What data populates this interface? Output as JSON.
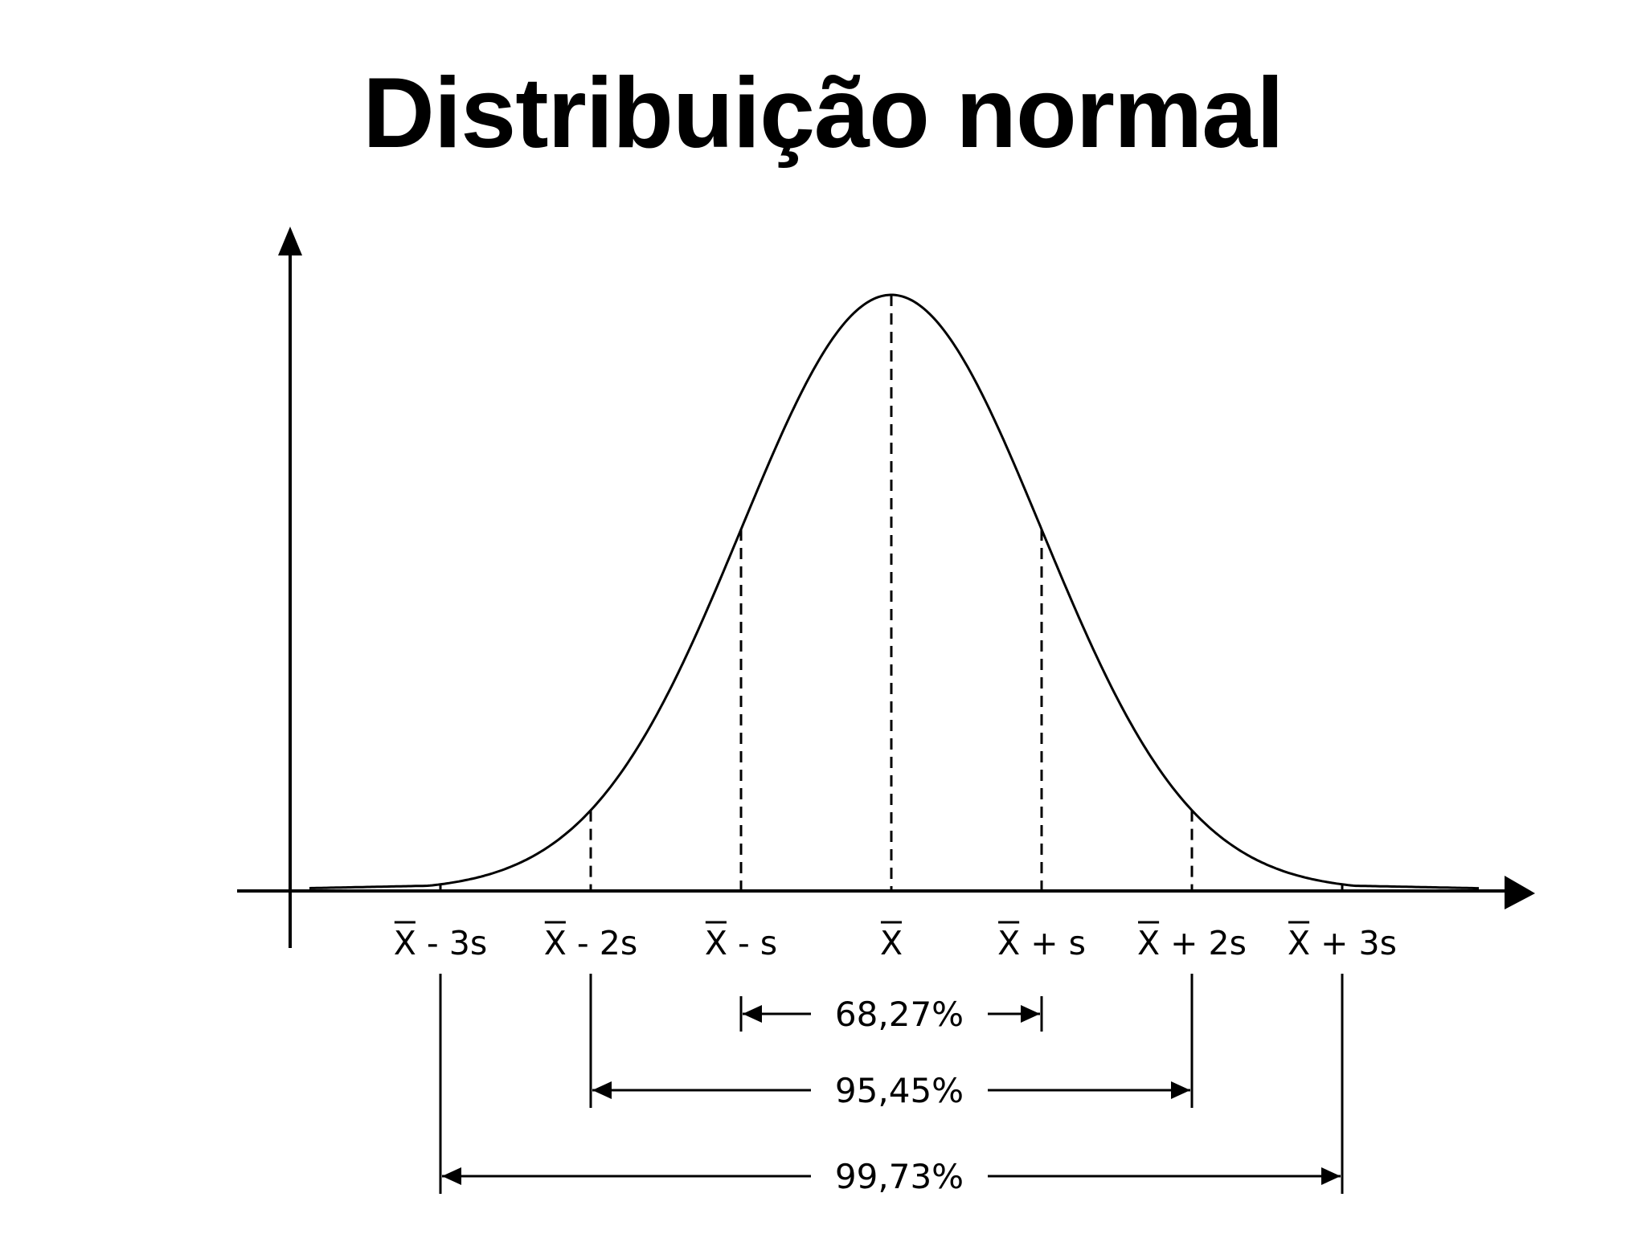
{
  "title": "Distribuição normal",
  "diagram": {
    "type": "normal-distribution-curve",
    "color": "#000000",
    "x_labels": [
      {
        "bar": "X",
        "suffix": " - 3s",
        "k": -3
      },
      {
        "bar": "X",
        "suffix": " - 2s",
        "k": -2
      },
      {
        "bar": "X",
        "suffix": " - s",
        "k": -1
      },
      {
        "bar": "X",
        "suffix": "",
        "k": 0
      },
      {
        "bar": "X",
        "suffix": " + s",
        "k": 1
      },
      {
        "bar": "X",
        "suffix": " + 2s",
        "k": 2
      },
      {
        "bar": "X",
        "suffix": " + 3s",
        "k": 3
      }
    ],
    "intervals": [
      {
        "label": "68,27%",
        "from_k": -1,
        "to_k": 1
      },
      {
        "label": "95,45%",
        "from_k": -2,
        "to_k": 2
      },
      {
        "label": "99,73%",
        "from_k": -3,
        "to_k": 3
      }
    ]
  }
}
